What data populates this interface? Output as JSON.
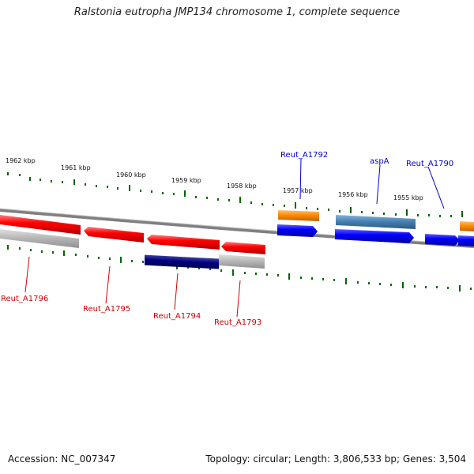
{
  "title": "Ralstonia eutropha JMP134 chromosome 1, complete sequence",
  "footer": {
    "accession": "Accession: NC_007347",
    "summary": "Topology: circular; Length: 3,806,533 bp; Genes: 3,504"
  },
  "kbp_labels": [
    "1962 kbp",
    "1961 kbp",
    "1960 kbp",
    "1959 kbp",
    "1958 kbp",
    "1957 kbp",
    "1956 kbp",
    "1955 kbp"
  ],
  "genes_top": [
    {
      "name": "Reut_A1792",
      "color": "#0000cc"
    },
    {
      "name": "aspA",
      "color": "#0000cc"
    },
    {
      "name": "Reut_A1790",
      "color": "#0000cc"
    }
  ],
  "genes_bottom": [
    {
      "name": "Reut_A1796",
      "color": "#cc0000"
    },
    {
      "name": "Reut_A1795",
      "color": "#cc0000"
    },
    {
      "name": "Reut_A1794",
      "color": "#cc0000"
    },
    {
      "name": "Reut_A1793",
      "color": "#cc0000"
    }
  ],
  "colors": {
    "forward_gene": "#0000ff",
    "reverse_gene": "#ff0000",
    "rna_orange": "#ff8c00",
    "steelblue": "#4682b4",
    "navy": "#000080",
    "grey_feature": "#b0b0b0",
    "tick_green": "#006600",
    "backbone": "#808080"
  }
}
